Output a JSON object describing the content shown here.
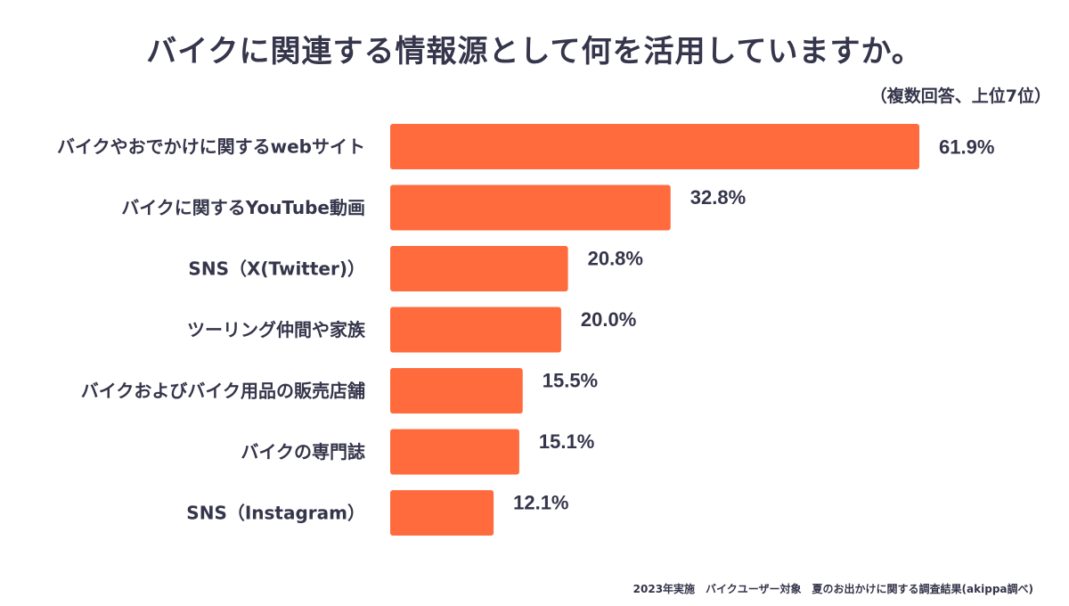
{
  "chart_data": {
    "type": "bar",
    "orientation": "horizontal",
    "title": "バイクに関連する情報源として何を活用していますか。",
    "subtitle": "（複数回答、上位7位）",
    "categories": [
      "バイクやおでかけに関するwebサイト",
      "バイクに関するYouTube動画",
      "SNS（X(Twitter)）",
      "ツーリング仲間や家族",
      "バイクおよびバイク用品の販売店舗",
      "バイクの専門誌",
      "SNS（Instagram）"
    ],
    "values": [
      61.9,
      32.8,
      20.8,
      20.0,
      15.5,
      15.1,
      12.1
    ],
    "value_labels": [
      "61.9%",
      "32.8%",
      "20.8%",
      "20.0%",
      "15.5%",
      "15.1%",
      "12.1%"
    ],
    "xlim": [
      0,
      61.9
    ],
    "unit": "%",
    "bar_color": "#FF6B3D",
    "grid": false,
    "xlabel": "",
    "ylabel": ""
  },
  "footer": "2023年実施　バイクユーザー対象　夏のお出かけに関する調査結果(akippa調べ)"
}
